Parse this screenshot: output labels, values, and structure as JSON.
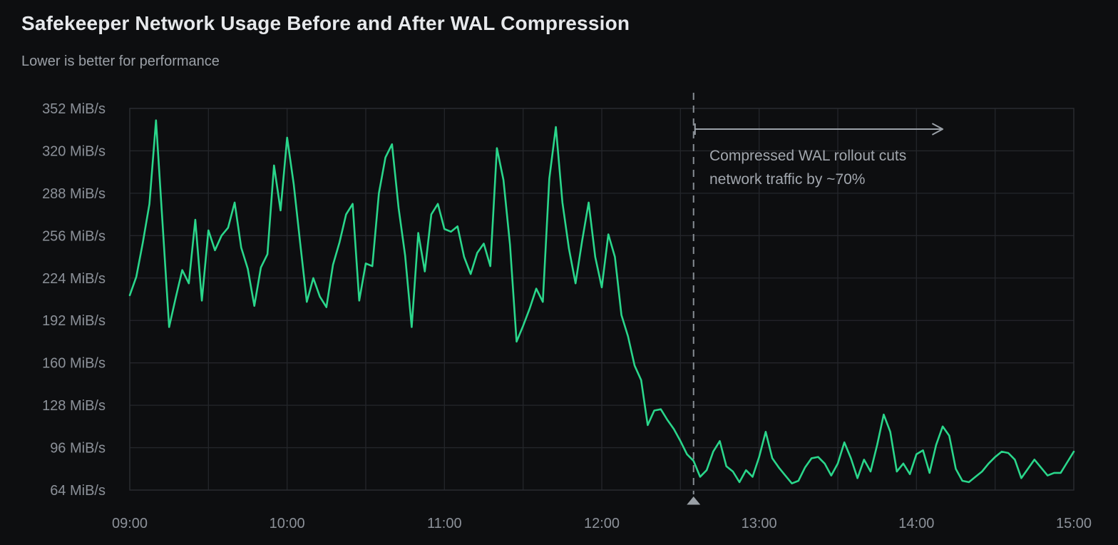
{
  "header": {
    "title": "Safekeeper Network Usage Before and After WAL Compression",
    "subtitle": "Lower is better for performance"
  },
  "colors": {
    "background": "#0d0e10",
    "grid": "#24262b",
    "plot_border": "#2b2d33",
    "axis_text": "#8c9199",
    "line": "#2ad68b",
    "annotation_line": "#878d94",
    "annotation_marker": "#9aa0a6",
    "annotation_arrow": "#9ba1a8",
    "annotation_text": "#a2a7ae",
    "title_text": "#e7e9ec",
    "subtitle_text": "#9ba0a7"
  },
  "chart_data": {
    "type": "line",
    "title": "Safekeeper Network Usage Before and After WAL Compression",
    "subtitle": "Lower is better for performance",
    "xlabel": "",
    "ylabel": "",
    "grid": true,
    "legend": "none",
    "x_ticks": [
      "09:00",
      "10:00",
      "11:00",
      "12:00",
      "13:00",
      "14:00",
      "15:00"
    ],
    "x_minor_gridline_minutes": 30,
    "x_range_minutes": 360,
    "y_ticks": [
      352,
      320,
      288,
      256,
      224,
      192,
      160,
      128,
      96,
      64
    ],
    "y_tick_suffix": " MiB/s",
    "ylim": [
      64,
      352
    ],
    "series": [
      {
        "name": "Safekeeper network usage",
        "unit": "MiB/s",
        "time_start": "09:00",
        "time_step_minutes": 2.5,
        "values": [
          211,
          225,
          251,
          280,
          343,
          265,
          187,
          209,
          230,
          220,
          268,
          207,
          260,
          245,
          256,
          262,
          281,
          247,
          231,
          203,
          232,
          242,
          309,
          275,
          330,
          295,
          250,
          206,
          224,
          210,
          202,
          234,
          251,
          272,
          280,
          207,
          235,
          233,
          288,
          315,
          325,
          277,
          241,
          187,
          258,
          229,
          272,
          280,
          261,
          259,
          263,
          240,
          227,
          243,
          250,
          233,
          322,
          298,
          249,
          176,
          188,
          201,
          216,
          206,
          299,
          338,
          281,
          246,
          220,
          252,
          281,
          240,
          217,
          257,
          240,
          196,
          180,
          158,
          147,
          113,
          124,
          125,
          117,
          110,
          101,
          91,
          86,
          74,
          79,
          93,
          101,
          82,
          78,
          70,
          79,
          74,
          89,
          108,
          88,
          81,
          75,
          69,
          71,
          81,
          88,
          89,
          84,
          75,
          84,
          100,
          88,
          73,
          87,
          78,
          98,
          121,
          108,
          78,
          84,
          76,
          91,
          94,
          77,
          98,
          112,
          105,
          80,
          71,
          70,
          74,
          78,
          84,
          89,
          93,
          92,
          87,
          73,
          80,
          87,
          81,
          75,
          77,
          77,
          85,
          93
        ]
      }
    ],
    "annotation": {
      "time": "12:35",
      "arrow_end_time": "14:10",
      "label_line1": "Compressed WAL rollout cuts",
      "label_line2": "network traffic by ~70%"
    }
  }
}
